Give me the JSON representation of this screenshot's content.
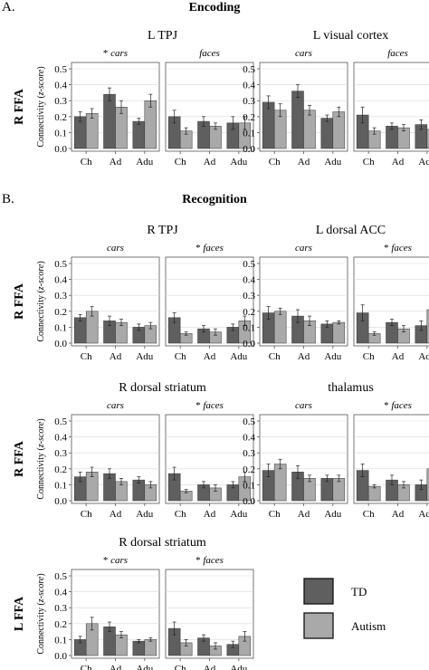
{
  "colors": {
    "TD": "#5f5f5f",
    "Autism": "#a9a9a9",
    "panel_bg": "#ffffff",
    "grid": "#d9d9d9",
    "border": "#555555"
  },
  "y_axis": {
    "label_prefix": "Connectivity (",
    "label_italic": "z-score",
    "label_suffix": ")",
    "ticks": [
      "0.0",
      "0.1",
      "0.2",
      "0.3",
      "0.4",
      "0.5"
    ]
  },
  "groups": [
    "Ch",
    "Ad",
    "Adu"
  ],
  "legend": {
    "items": [
      {
        "name": "TD"
      },
      {
        "name": "Autism"
      }
    ]
  },
  "sections": [
    {
      "label": "A.",
      "title": "Encoding"
    },
    {
      "label": "B.",
      "title": "Recognition"
    }
  ],
  "chart_data": [
    {
      "type": "bar",
      "section": "Encoding",
      "region": "L TPJ",
      "row_label": "R FFA",
      "ylim": [
        0,
        0.5
      ],
      "facets": [
        {
          "label": "cars",
          "star": "*",
          "TD": [
            0.2,
            0.34,
            0.17
          ],
          "TD_err": [
            0.03,
            0.04,
            0.02
          ],
          "Autism": [
            0.22,
            0.26,
            0.3
          ],
          "Autism_err": [
            0.03,
            0.04,
            0.04
          ]
        },
        {
          "label": "faces",
          "star": "",
          "TD": [
            0.2,
            0.17,
            0.16
          ],
          "TD_err": [
            0.04,
            0.03,
            0.04
          ],
          "Autism": [
            0.11,
            0.14,
            0.16
          ],
          "Autism_err": [
            0.02,
            0.02,
            0.04
          ]
        }
      ]
    },
    {
      "type": "bar",
      "section": "Encoding",
      "region": "L visual cortex",
      "row_label": "R FFA",
      "ylim": [
        0,
        0.5
      ],
      "facets": [
        {
          "label": "cars",
          "star": "",
          "TD": [
            0.29,
            0.36,
            0.19
          ],
          "TD_err": [
            0.04,
            0.04,
            0.02
          ],
          "Autism": [
            0.24,
            0.24,
            0.23
          ],
          "Autism_err": [
            0.04,
            0.03,
            0.03
          ]
        },
        {
          "label": "faces",
          "star": "",
          "TD": [
            0.21,
            0.14,
            0.15
          ],
          "TD_err": [
            0.05,
            0.02,
            0.03
          ],
          "Autism": [
            0.11,
            0.13,
            0.12
          ],
          "Autism_err": [
            0.02,
            0.02,
            0.03
          ]
        }
      ]
    },
    {
      "type": "bar",
      "section": "Recognition",
      "region": "R TPJ",
      "row_label": "R FFA",
      "ylim": [
        0,
        0.5
      ],
      "facets": [
        {
          "label": "cars",
          "star": "",
          "TD": [
            0.16,
            0.14,
            0.1
          ],
          "TD_err": [
            0.02,
            0.03,
            0.02
          ],
          "Autism": [
            0.2,
            0.13,
            0.11
          ],
          "Autism_err": [
            0.03,
            0.02,
            0.02
          ]
        },
        {
          "label": "faces",
          "star": "*",
          "TD": [
            0.16,
            0.09,
            0.1
          ],
          "TD_err": [
            0.03,
            0.02,
            0.02
          ],
          "Autism": [
            0.06,
            0.07,
            0.14
          ],
          "Autism_err": [
            0.01,
            0.02,
            0.03
          ]
        }
      ]
    },
    {
      "type": "bar",
      "section": "Recognition",
      "region": "L dorsal ACC",
      "row_label": "R FFA",
      "ylim": [
        0,
        0.5
      ],
      "facets": [
        {
          "label": "cars",
          "star": "",
          "TD": [
            0.19,
            0.17,
            0.12
          ],
          "TD_err": [
            0.04,
            0.04,
            0.02
          ],
          "Autism": [
            0.2,
            0.14,
            0.13
          ],
          "Autism_err": [
            0.02,
            0.03,
            0.01
          ]
        },
        {
          "label": "faces",
          "star": "*",
          "TD": [
            0.19,
            0.13,
            0.11
          ],
          "TD_err": [
            0.05,
            0.02,
            0.03
          ],
          "Autism": [
            0.06,
            0.09,
            0.21
          ],
          "Autism_err": [
            0.01,
            0.02,
            0.05
          ]
        }
      ]
    },
    {
      "type": "bar",
      "section": "Recognition",
      "region": "R dorsal striatum",
      "row_label": "R FFA",
      "ylim": [
        0,
        0.5
      ],
      "facets": [
        {
          "label": "cars",
          "star": "",
          "TD": [
            0.15,
            0.17,
            0.13
          ],
          "TD_err": [
            0.03,
            0.03,
            0.02
          ],
          "Autism": [
            0.18,
            0.12,
            0.1
          ],
          "Autism_err": [
            0.03,
            0.02,
            0.02
          ]
        },
        {
          "label": "faces",
          "star": "*",
          "TD": [
            0.17,
            0.1,
            0.1
          ],
          "TD_err": [
            0.04,
            0.02,
            0.02
          ],
          "Autism": [
            0.06,
            0.08,
            0.15
          ],
          "Autism_err": [
            0.01,
            0.02,
            0.03
          ]
        }
      ]
    },
    {
      "type": "bar",
      "section": "Recognition",
      "region": "thalamus",
      "row_label": "R FFA",
      "ylim": [
        0,
        0.5
      ],
      "facets": [
        {
          "label": "cars",
          "star": "",
          "TD": [
            0.19,
            0.18,
            0.14
          ],
          "TD_err": [
            0.04,
            0.04,
            0.02
          ],
          "Autism": [
            0.23,
            0.14,
            0.14
          ],
          "Autism_err": [
            0.03,
            0.02,
            0.02
          ]
        },
        {
          "label": "faces",
          "star": "*",
          "TD": [
            0.19,
            0.13,
            0.1
          ],
          "TD_err": [
            0.04,
            0.03,
            0.03
          ],
          "Autism": [
            0.09,
            0.1,
            0.2
          ],
          "Autism_err": [
            0.01,
            0.02,
            0.04
          ]
        }
      ]
    },
    {
      "type": "bar",
      "section": "Recognition",
      "region": "R dorsal striatum",
      "row_label": "L FFA",
      "ylim": [
        0,
        0.5
      ],
      "facets": [
        {
          "label": "cars",
          "star": "*",
          "TD": [
            0.1,
            0.18,
            0.09
          ],
          "TD_err": [
            0.02,
            0.03,
            0.01
          ],
          "Autism": [
            0.2,
            0.13,
            0.1
          ],
          "Autism_err": [
            0.04,
            0.02,
            0.01
          ]
        },
        {
          "label": "faces",
          "star": "*",
          "TD": [
            0.17,
            0.11,
            0.07
          ],
          "TD_err": [
            0.04,
            0.02,
            0.02
          ],
          "Autism": [
            0.08,
            0.06,
            0.12
          ],
          "Autism_err": [
            0.02,
            0.02,
            0.03
          ]
        }
      ]
    }
  ]
}
